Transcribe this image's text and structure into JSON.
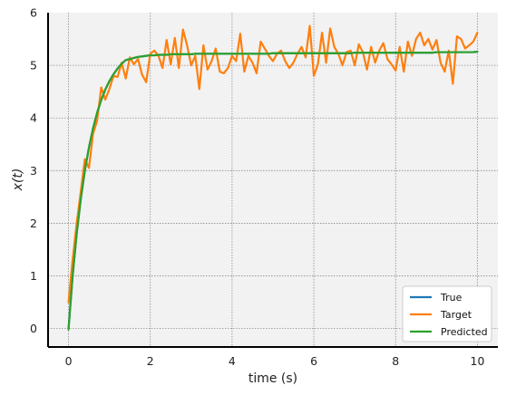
{
  "chart_data": {
    "type": "line",
    "title": "",
    "xlabel": "time (s)",
    "ylabel": "x(t)",
    "xlim": [
      -0.5,
      10.5
    ],
    "ylim": [
      -0.35,
      6.0
    ],
    "xticks": [
      0,
      2,
      4,
      6,
      8,
      10
    ],
    "yticks": [
      0,
      1,
      2,
      3,
      4,
      5,
      6
    ],
    "x_tick_labels": [
      "0",
      "2",
      "4",
      "6",
      "8",
      "10"
    ],
    "y_tick_labels": [
      "0",
      "1",
      "2",
      "3",
      "4",
      "5",
      "6"
    ],
    "grid": true,
    "legend_position": "bottom-right",
    "x": [
      0.0,
      0.1,
      0.2,
      0.3,
      0.4,
      0.5,
      0.6,
      0.7,
      0.8,
      0.9,
      1.0,
      1.1,
      1.2,
      1.3,
      1.4,
      1.5,
      1.6,
      1.7,
      1.8,
      1.9,
      2.0,
      2.1,
      2.2,
      2.3,
      2.4,
      2.5,
      2.6,
      2.7,
      2.8,
      2.9,
      3.0,
      3.1,
      3.2,
      3.3,
      3.4,
      3.5,
      3.6,
      3.7,
      3.8,
      3.9,
      4.0,
      4.1,
      4.2,
      4.3,
      4.4,
      4.5,
      4.6,
      4.7,
      4.8,
      4.9,
      5.0,
      5.1,
      5.2,
      5.3,
      5.4,
      5.5,
      5.6,
      5.7,
      5.8,
      5.9,
      6.0,
      6.1,
      6.2,
      6.3,
      6.4,
      6.5,
      6.6,
      6.7,
      6.8,
      6.9,
      7.0,
      7.1,
      7.2,
      7.3,
      7.4,
      7.5,
      7.6,
      7.7,
      7.8,
      7.9,
      8.0,
      8.1,
      8.2,
      8.3,
      8.4,
      8.5,
      8.6,
      8.7,
      8.8,
      8.9,
      9.0,
      9.1,
      9.2,
      9.3,
      9.4,
      9.5,
      9.6,
      9.7,
      9.8,
      9.9,
      10.0
    ],
    "series": [
      {
        "name": "True",
        "color": "#1f77b4",
        "values": [
          0.0,
          0.99,
          1.8,
          2.46,
          3.0,
          3.44,
          3.8,
          4.1,
          4.34,
          4.54,
          4.7,
          4.83,
          4.94,
          5.03,
          5.1,
          5.12,
          5.14,
          5.16,
          5.17,
          5.18,
          5.19,
          5.19,
          5.2,
          5.2,
          5.2,
          5.21,
          5.21,
          5.21,
          5.21,
          5.21,
          5.21,
          5.22,
          5.22,
          5.22,
          5.22,
          5.22,
          5.22,
          5.22,
          5.22,
          5.22,
          5.22,
          5.22,
          5.22,
          5.22,
          5.22,
          5.22,
          5.22,
          5.22,
          5.22,
          5.22,
          5.23,
          5.23,
          5.23,
          5.23,
          5.23,
          5.23,
          5.23,
          5.23,
          5.23,
          5.23,
          5.23,
          5.23,
          5.23,
          5.23,
          5.23,
          5.23,
          5.23,
          5.23,
          5.23,
          5.23,
          5.24,
          5.24,
          5.24,
          5.24,
          5.24,
          5.24,
          5.24,
          5.24,
          5.24,
          5.24,
          5.24,
          5.24,
          5.24,
          5.24,
          5.24,
          5.24,
          5.24,
          5.24,
          5.24,
          5.24,
          5.25,
          5.25,
          5.25,
          5.25,
          5.25,
          5.25,
          5.25,
          5.25,
          5.25,
          5.25,
          5.26
        ]
      },
      {
        "name": "Target",
        "color": "#ff7f0e",
        "values": [
          0.5,
          1.3,
          2.0,
          2.6,
          3.22,
          3.05,
          3.7,
          3.95,
          4.58,
          4.35,
          4.55,
          4.8,
          4.78,
          5.05,
          4.75,
          5.15,
          5.02,
          5.12,
          4.82,
          4.68,
          5.22,
          5.28,
          5.18,
          4.95,
          5.48,
          5.02,
          5.52,
          4.95,
          5.68,
          5.38,
          5.0,
          5.18,
          4.55,
          5.38,
          4.92,
          5.08,
          5.32,
          4.88,
          4.85,
          4.95,
          5.18,
          5.08,
          5.6,
          4.88,
          5.18,
          5.05,
          4.85,
          5.45,
          5.32,
          5.18,
          5.08,
          5.22,
          5.28,
          5.08,
          4.95,
          5.05,
          5.22,
          5.35,
          5.15,
          5.75,
          4.8,
          5.02,
          5.62,
          5.05,
          5.7,
          5.35,
          5.22,
          5.0,
          5.25,
          5.28,
          5.0,
          5.4,
          5.25,
          4.92,
          5.35,
          5.05,
          5.28,
          5.42,
          5.12,
          5.02,
          4.9,
          5.35,
          4.88,
          5.45,
          5.18,
          5.5,
          5.62,
          5.38,
          5.5,
          5.3,
          5.48,
          5.05,
          4.88,
          5.28,
          4.65,
          5.55,
          5.5,
          5.32,
          5.38,
          5.45,
          5.62
        ]
      },
      {
        "name": "Predicted",
        "color": "#2ca02c",
        "values": [
          -0.02,
          0.99,
          1.8,
          2.46,
          3.0,
          3.44,
          3.8,
          4.1,
          4.34,
          4.54,
          4.7,
          4.83,
          4.94,
          5.03,
          5.1,
          5.12,
          5.14,
          5.16,
          5.17,
          5.18,
          5.19,
          5.19,
          5.2,
          5.2,
          5.2,
          5.21,
          5.21,
          5.21,
          5.21,
          5.21,
          5.21,
          5.22,
          5.22,
          5.22,
          5.22,
          5.22,
          5.22,
          5.22,
          5.22,
          5.22,
          5.22,
          5.22,
          5.22,
          5.22,
          5.22,
          5.22,
          5.22,
          5.22,
          5.22,
          5.22,
          5.23,
          5.23,
          5.23,
          5.23,
          5.23,
          5.23,
          5.23,
          5.23,
          5.23,
          5.23,
          5.23,
          5.23,
          5.23,
          5.23,
          5.23,
          5.23,
          5.23,
          5.23,
          5.23,
          5.23,
          5.24,
          5.24,
          5.24,
          5.24,
          5.24,
          5.24,
          5.24,
          5.24,
          5.24,
          5.24,
          5.24,
          5.24,
          5.24,
          5.24,
          5.24,
          5.24,
          5.24,
          5.24,
          5.24,
          5.24,
          5.25,
          5.25,
          5.25,
          5.25,
          5.25,
          5.25,
          5.25,
          5.25,
          5.25,
          5.25,
          5.26
        ]
      }
    ]
  }
}
